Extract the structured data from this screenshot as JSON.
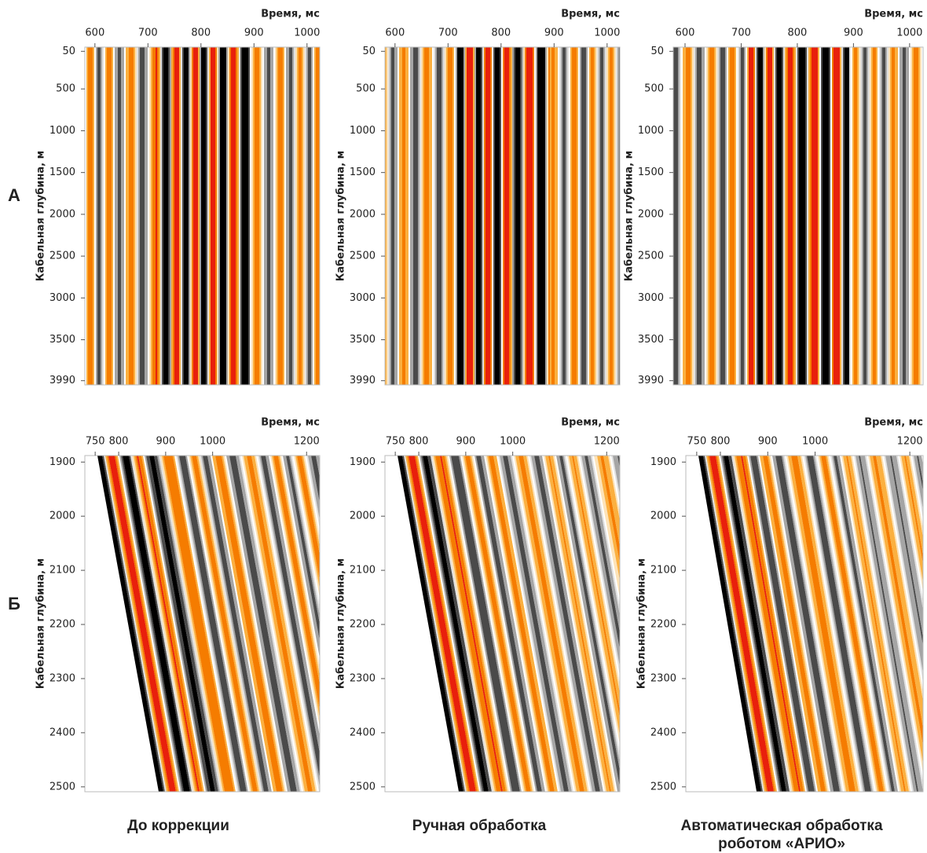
{
  "row_labels": [
    "А",
    "Б"
  ],
  "column_captions": [
    [
      "До коррекции"
    ],
    [
      "Ручная обработка"
    ],
    [
      "Автоматическая обработка",
      "роботом «АРИО»"
    ]
  ],
  "panels": [
    {
      "xlabel": "Время, мс",
      "ylabel": "Кабельная глубина, м",
      "xlim": [
        581,
        1024
      ],
      "xticks": [
        600,
        700,
        800,
        900,
        1000
      ],
      "ylim": [
        0,
        4040
      ],
      "yticks": [
        50,
        500,
        1000,
        1500,
        2000,
        2500,
        3000,
        3500,
        3990
      ]
    },
    {
      "xlabel": "Время, мс",
      "ylabel": "Кабельная глубина, м",
      "xlim": [
        581,
        1024
      ],
      "xticks": [
        600,
        700,
        800,
        900,
        1000
      ],
      "ylim": [
        0,
        4040
      ],
      "yticks": [
        50,
        500,
        1000,
        1500,
        2000,
        2500,
        3000,
        3500,
        3990
      ]
    },
    {
      "xlabel": "Время, мс",
      "ylabel": "Кабельная глубина, м",
      "xlim": [
        579,
        1024
      ],
      "xticks": [
        600,
        700,
        800,
        900,
        1000
      ],
      "ylim": [
        0,
        4040
      ],
      "yticks": [
        50,
        500,
        1000,
        1500,
        2000,
        2500,
        3000,
        3500,
        3990
      ]
    },
    {
      "xlabel": "Время, мс",
      "ylabel": "Кабельная глубина, м",
      "xlim": [
        728,
        1228
      ],
      "xticks": [
        750,
        800,
        900,
        1000,
        1200
      ],
      "ylim": [
        1888,
        2509
      ],
      "yticks": [
        1900,
        2000,
        2100,
        2200,
        2300,
        2400,
        2500
      ]
    },
    {
      "xlabel": "Время, мс",
      "ylabel": "Кабельная глубина, м",
      "xlim": [
        728,
        1228
      ],
      "xticks": [
        750,
        800,
        900,
        1000,
        1200
      ],
      "ylim": [
        1888,
        2509
      ],
      "yticks": [
        1900,
        2000,
        2100,
        2200,
        2300,
        2400,
        2500
      ]
    },
    {
      "xlabel": "Время, мс",
      "ylabel": "Кабельная глубина, м",
      "xlim": [
        727,
        1228
      ],
      "xticks": [
        750,
        800,
        900,
        1000,
        1200
      ],
      "ylim": [
        1888,
        2509
      ],
      "yticks": [
        1900,
        2000,
        2100,
        2200,
        2300,
        2400,
        2500
      ]
    }
  ]
}
